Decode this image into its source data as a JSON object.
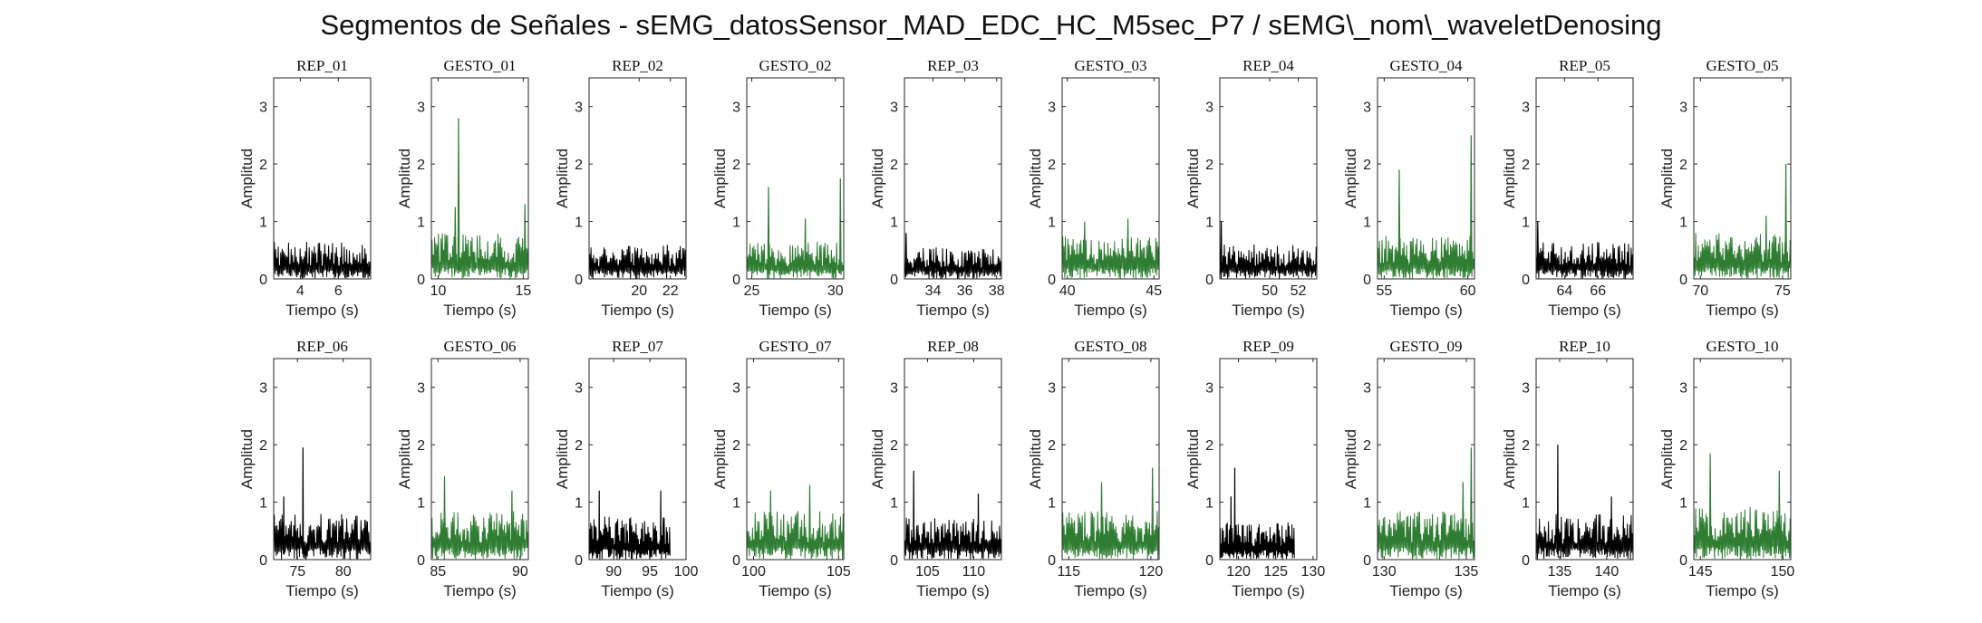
{
  "title": "Segmentos de Señales - sEMG_datosSensor_MAD_EDC_HC_M5sec_P7 / sEMG\\_nom\\_waveletDenosing",
  "colors": {
    "rep": "#000000",
    "gesto": "#2e7d32",
    "axis": "#262626"
  },
  "chart_data": [
    {
      "type": "line",
      "title": "REP_01",
      "kind": "rep",
      "xlim": [
        2.6,
        7.7
      ],
      "xticks": [
        4,
        6
      ],
      "ylim": [
        0,
        3.5
      ],
      "yticks": [
        0,
        1,
        2,
        3
      ],
      "xlabel": "Tiempo (s)",
      "ylabel": "Amplitud",
      "peaks": [],
      "typical_max": 0.65,
      "data_end": 7.7
    },
    {
      "type": "line",
      "title": "GESTO_01",
      "kind": "gesto",
      "xlim": [
        9.6,
        15.3
      ],
      "xticks": [
        10,
        15
      ],
      "ylim": [
        0,
        3.5
      ],
      "yticks": [
        0,
        1,
        2,
        3
      ],
      "xlabel": "Tiempo (s)",
      "ylabel": "Amplitud",
      "peaks": [
        [
          11.2,
          2.8
        ],
        [
          11.0,
          1.25
        ],
        [
          15.1,
          1.3
        ]
      ],
      "typical_max": 0.8,
      "data_end": 15.3
    },
    {
      "type": "line",
      "title": "REP_02",
      "kind": "rep",
      "xlim": [
        16.8,
        23.0
      ],
      "xticks": [
        20,
        22
      ],
      "ylim": [
        0,
        3.5
      ],
      "yticks": [
        0,
        1,
        2,
        3
      ],
      "xlabel": "Tiempo (s)",
      "ylabel": "Amplitud",
      "peaks": [],
      "typical_max": 0.6,
      "data_end": 23.0
    },
    {
      "type": "line",
      "title": "GESTO_02",
      "kind": "gesto",
      "xlim": [
        24.7,
        30.5
      ],
      "xticks": [
        25,
        30
      ],
      "ylim": [
        0,
        3.5
      ],
      "yticks": [
        0,
        1,
        2,
        3
      ],
      "xlabel": "Tiempo (s)",
      "ylabel": "Amplitud",
      "peaks": [
        [
          26.0,
          1.6
        ],
        [
          30.3,
          1.75
        ],
        [
          28.2,
          1.05
        ]
      ],
      "typical_max": 0.65,
      "data_end": 30.5
    },
    {
      "type": "line",
      "title": "REP_03",
      "kind": "rep",
      "xlim": [
        32.2,
        38.3
      ],
      "xticks": [
        34,
        36,
        38
      ],
      "ylim": [
        0,
        3.5
      ],
      "yticks": [
        0,
        1,
        2,
        3
      ],
      "xlabel": "Tiempo (s)",
      "ylabel": "Amplitud",
      "peaks": [
        [
          32.3,
          0.8
        ]
      ],
      "typical_max": 0.55,
      "data_end": 38.3
    },
    {
      "type": "line",
      "title": "GESTO_03",
      "kind": "gesto",
      "xlim": [
        39.7,
        45.3
      ],
      "xticks": [
        40,
        45
      ],
      "ylim": [
        0,
        3.5
      ],
      "yticks": [
        0,
        1,
        2,
        3
      ],
      "xlabel": "Tiempo (s)",
      "ylabel": "Amplitud",
      "peaks": [
        [
          41.0,
          1.0
        ],
        [
          43.5,
          1.05
        ]
      ],
      "typical_max": 0.75,
      "data_end": 45.3
    },
    {
      "type": "line",
      "title": "REP_04",
      "kind": "rep",
      "xlim": [
        46.5,
        53.3
      ],
      "xticks": [
        50,
        52
      ],
      "ylim": [
        0,
        3.5
      ],
      "yticks": [
        0,
        1,
        2,
        3
      ],
      "xlabel": "Tiempo (s)",
      "ylabel": "Amplitud",
      "peaks": [
        [
          46.6,
          1.0
        ]
      ],
      "typical_max": 0.6,
      "data_end": 53.3
    },
    {
      "type": "line",
      "title": "GESTO_04",
      "kind": "gesto",
      "xlim": [
        54.6,
        60.4
      ],
      "xticks": [
        55,
        60
      ],
      "ylim": [
        0,
        3.5
      ],
      "yticks": [
        0,
        1,
        2,
        3
      ],
      "xlabel": "Tiempo (s)",
      "ylabel": "Amplitud",
      "peaks": [
        [
          55.9,
          1.9
        ],
        [
          60.2,
          2.5
        ]
      ],
      "typical_max": 0.75,
      "data_end": 60.4
    },
    {
      "type": "line",
      "title": "REP_05",
      "kind": "rep",
      "xlim": [
        62.3,
        68.1
      ],
      "xticks": [
        64,
        66
      ],
      "ylim": [
        0,
        3.5
      ],
      "yticks": [
        0,
        1,
        2,
        3
      ],
      "xlabel": "Tiempo (s)",
      "ylabel": "Amplitud",
      "peaks": [
        [
          62.4,
          1.0
        ]
      ],
      "typical_max": 0.65,
      "data_end": 68.1
    },
    {
      "type": "line",
      "title": "GESTO_05",
      "kind": "gesto",
      "xlim": [
        69.6,
        75.5
      ],
      "xticks": [
        70,
        75
      ],
      "ylim": [
        0,
        3.5
      ],
      "yticks": [
        0,
        1,
        2,
        3
      ],
      "xlabel": "Tiempo (s)",
      "ylabel": "Amplitud",
      "peaks": [
        [
          75.2,
          2.0
        ],
        [
          74.0,
          1.1
        ]
      ],
      "typical_max": 0.8,
      "data_end": 75.5
    },
    {
      "type": "line",
      "title": "REP_06",
      "kind": "rep",
      "xlim": [
        72.4,
        83.0
      ],
      "xticks": [
        75,
        80
      ],
      "ylim": [
        0,
        3.5
      ],
      "yticks": [
        0,
        1,
        2,
        3
      ],
      "xlabel": "Tiempo (s)",
      "ylabel": "Amplitud",
      "peaks": [
        [
          75.6,
          1.95
        ],
        [
          73.5,
          1.1
        ]
      ],
      "typical_max": 0.8,
      "data_end": 83.0
    },
    {
      "type": "line",
      "title": "GESTO_06",
      "kind": "gesto",
      "xlim": [
        84.6,
        90.5
      ],
      "xticks": [
        85,
        90
      ],
      "ylim": [
        0,
        3.5
      ],
      "yticks": [
        0,
        1,
        2,
        3
      ],
      "xlabel": "Tiempo (s)",
      "ylabel": "Amplitud",
      "peaks": [
        [
          85.4,
          1.45
        ],
        [
          89.5,
          1.2
        ]
      ],
      "typical_max": 0.85,
      "data_end": 90.5
    },
    {
      "type": "line",
      "title": "REP_07",
      "kind": "rep",
      "xlim": [
        86.6,
        100.0
      ],
      "xticks": [
        90,
        95,
        100
      ],
      "ylim": [
        0,
        3.5
      ],
      "yticks": [
        0,
        1,
        2,
        3
      ],
      "xlabel": "Tiempo (s)",
      "ylabel": "Amplitud",
      "peaks": [
        [
          88.0,
          1.2
        ],
        [
          96.5,
          1.2
        ]
      ],
      "typical_max": 0.75,
      "data_end": 97.8
    },
    {
      "type": "line",
      "title": "GESTO_07",
      "kind": "gesto",
      "xlim": [
        99.6,
        105.3
      ],
      "xticks": [
        100,
        105
      ],
      "ylim": [
        0,
        3.5
      ],
      "yticks": [
        0,
        1,
        2,
        3
      ],
      "xlabel": "Tiempo (s)",
      "ylabel": "Amplitud",
      "peaks": [
        [
          101.0,
          1.2
        ],
        [
          103.3,
          1.3
        ]
      ],
      "typical_max": 0.85,
      "data_end": 105.3
    },
    {
      "type": "line",
      "title": "REP_08",
      "kind": "rep",
      "xlim": [
        102.5,
        113.0
      ],
      "xticks": [
        105,
        110
      ],
      "ylim": [
        0,
        3.5
      ],
      "yticks": [
        0,
        1,
        2,
        3
      ],
      "xlabel": "Tiempo (s)",
      "ylabel": "Amplitud",
      "peaks": [
        [
          103.5,
          1.55
        ],
        [
          110.5,
          1.15
        ]
      ],
      "typical_max": 0.75,
      "data_end": 113.0
    },
    {
      "type": "line",
      "title": "GESTO_08",
      "kind": "gesto",
      "xlim": [
        114.6,
        120.5
      ],
      "xticks": [
        115,
        120
      ],
      "ylim": [
        0,
        3.5
      ],
      "yticks": [
        0,
        1,
        2,
        3
      ],
      "xlabel": "Tiempo (s)",
      "ylabel": "Amplitud",
      "peaks": [
        [
          120.1,
          1.6
        ],
        [
          117.0,
          1.35
        ]
      ],
      "typical_max": 0.85,
      "data_end": 120.5
    },
    {
      "type": "line",
      "title": "REP_09",
      "kind": "rep",
      "xlim": [
        117.5,
        130.5
      ],
      "xticks": [
        120,
        125,
        130
      ],
      "ylim": [
        0,
        3.5
      ],
      "yticks": [
        0,
        1,
        2,
        3
      ],
      "xlabel": "Tiempo (s)",
      "ylabel": "Amplitud",
      "peaks": [
        [
          119.5,
          1.6
        ],
        [
          119.0,
          1.1
        ]
      ],
      "typical_max": 0.65,
      "data_end": 127.5
    },
    {
      "type": "line",
      "title": "GESTO_09",
      "kind": "gesto",
      "xlim": [
        129.6,
        135.5
      ],
      "xticks": [
        130,
        135
      ],
      "ylim": [
        0,
        3.5
      ],
      "yticks": [
        0,
        1,
        2,
        3
      ],
      "xlabel": "Tiempo (s)",
      "ylabel": "Amplitud",
      "peaks": [
        [
          135.3,
          1.95
        ],
        [
          134.8,
          1.35
        ]
      ],
      "typical_max": 0.85,
      "data_end": 135.5
    },
    {
      "type": "line",
      "title": "REP_10",
      "kind": "rep",
      "xlim": [
        132.5,
        142.8
      ],
      "xticks": [
        135,
        140
      ],
      "ylim": [
        0,
        3.5
      ],
      "yticks": [
        0,
        1,
        2,
        3
      ],
      "xlabel": "Tiempo (s)",
      "ylabel": "Amplitud",
      "peaks": [
        [
          134.8,
          2.0
        ],
        [
          140.5,
          1.1
        ]
      ],
      "typical_max": 0.8,
      "data_end": 142.8
    },
    {
      "type": "line",
      "title": "GESTO_10",
      "kind": "gesto",
      "xlim": [
        144.6,
        150.5
      ],
      "xticks": [
        145,
        150
      ],
      "ylim": [
        0,
        3.5
      ],
      "yticks": [
        0,
        1,
        2,
        3
      ],
      "xlabel": "Tiempo (s)",
      "ylabel": "Amplitud",
      "peaks": [
        [
          145.6,
          1.85
        ],
        [
          149.8,
          1.55
        ]
      ],
      "typical_max": 0.95,
      "data_end": 150.5
    }
  ]
}
